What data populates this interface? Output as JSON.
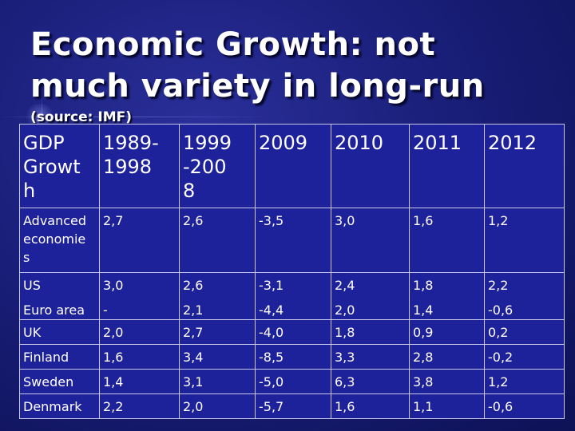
{
  "slide": {
    "title_lines": [
      "Economic Growth: not",
      "much variety in long-run"
    ],
    "subtitle": "(source: IMF)"
  },
  "table": {
    "header": {
      "label_lines": [
        "GDP",
        "Growt",
        "h"
      ],
      "col_1989": [
        "1989-",
        "1998"
      ],
      "col_1999": [
        "1999",
        "-200",
        "8"
      ],
      "col_2009": "2009",
      "col_2010": "2010",
      "col_2011": "2011",
      "col_2012": "2012"
    },
    "advanced": {
      "label_lines": [
        "Advanced",
        "economie",
        "s"
      ],
      "values": [
        "2,7",
        "2,6",
        "-3,5",
        "3,0",
        "1,6",
        "1,2"
      ]
    },
    "us": {
      "label": "US",
      "values": [
        "3,0",
        "2,6",
        "-3,1",
        "2,4",
        "1,8",
        "2,2"
      ]
    },
    "euro_area": {
      "label": "Euro area",
      "values": [
        "-",
        "2,1",
        "-4,4",
        "2,0",
        "1,4",
        "-0,6"
      ]
    },
    "rows": [
      {
        "label": "UK",
        "values": [
          "2,0",
          "2,7",
          "-4,0",
          "1,8",
          "0,9",
          "0,2"
        ]
      },
      {
        "label": "Finland",
        "values": [
          "1,6",
          "3,4",
          "-8,5",
          "3,3",
          "2,8",
          "-0,2"
        ]
      },
      {
        "label": "Sweden",
        "values": [
          "1,4",
          "3,1",
          "-5,0",
          "6,3",
          "3,8",
          "1,2"
        ]
      },
      {
        "label": "Denmark",
        "values": [
          "2,2",
          "2,0",
          "-5,7",
          "1,6",
          "1,1",
          "-0,6"
        ]
      }
    ]
  }
}
